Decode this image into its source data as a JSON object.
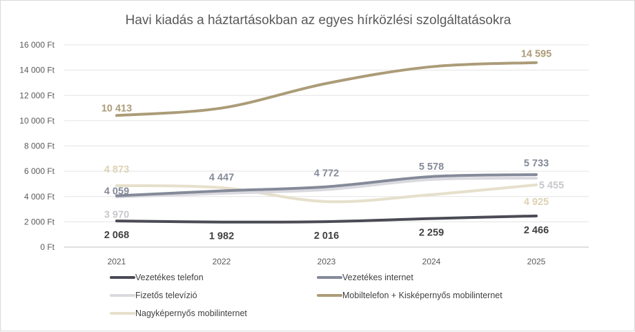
{
  "chart_data": {
    "type": "line",
    "title": "Havi kiadás a háztartásokban az egyes hírközlési szolgáltatásokra",
    "xlabel": "",
    "ylabel": "",
    "categories": [
      "2021",
      "2022",
      "2023",
      "2024",
      "2025"
    ],
    "ylim": [
      0,
      16000
    ],
    "y_ticks": [
      0,
      2000,
      4000,
      6000,
      8000,
      10000,
      12000,
      14000,
      16000
    ],
    "y_tick_labels": [
      "0 Ft",
      "2 000 Ft",
      "4 000 Ft",
      "6 000 Ft",
      "8 000 Ft",
      "10 000 Ft",
      "12 000 Ft",
      "14 000 Ft",
      "16 000 Ft"
    ],
    "grid": true,
    "legend_position": "bottom",
    "series": [
      {
        "name": "Vezetékes telefon",
        "color": "#4a4b55",
        "values": [
          2068,
          1982,
          2016,
          2259,
          2466
        ],
        "labels": [
          "2 068",
          "1 982",
          "2 016",
          "2 259",
          "2 466"
        ]
      },
      {
        "name": "Vezetékes internet",
        "color": "#858a99",
        "values": [
          4059,
          4447,
          4772,
          5578,
          5733
        ],
        "labels": [
          "4 059",
          "4 447",
          "4 772",
          "5 578",
          "5 733"
        ]
      },
      {
        "name": "Fizetős televízió",
        "color": "#d9d9df",
        "values": [
          3970,
          4250,
          4550,
          5350,
          5455
        ],
        "labels": [
          "3 970",
          "",
          "",
          "",
          "5 455"
        ]
      },
      {
        "name": "Mobiltelefon + Kisképernyős mobilinternet",
        "color": "#ab9c78",
        "values": [
          10413,
          11000,
          12950,
          14270,
          14595
        ],
        "labels": [
          "10 413",
          "",
          "",
          "",
          "14 595"
        ]
      },
      {
        "name": "Nagyképernyős mobilinternet",
        "color": "#e6dfcb",
        "values": [
          4873,
          4700,
          3600,
          4150,
          4925
        ],
        "labels": [
          "4 873",
          "",
          "",
          "",
          "4 925"
        ]
      }
    ]
  }
}
